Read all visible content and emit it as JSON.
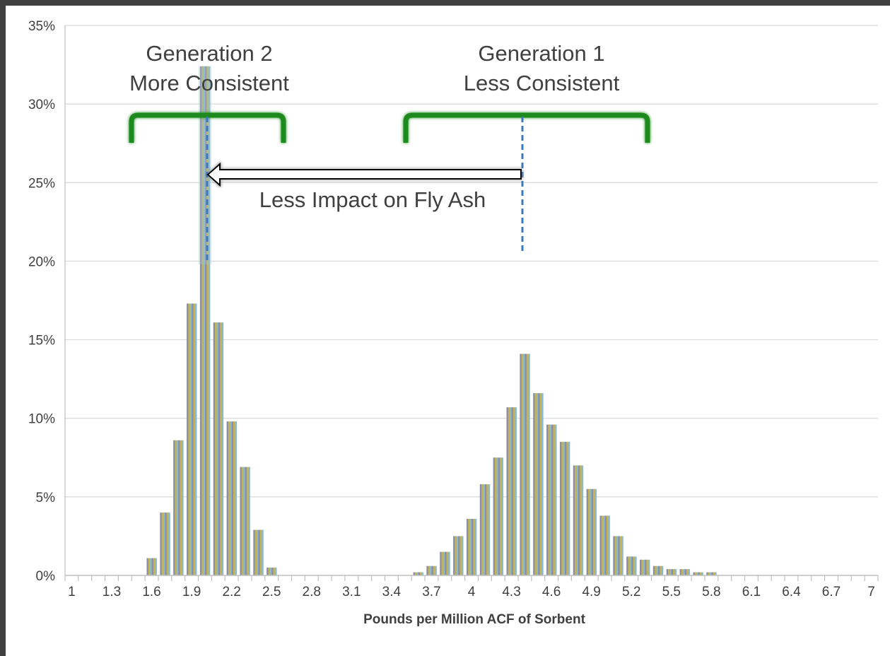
{
  "chart_data": {
    "type": "bar",
    "xlabel": "Pounds per Million ACF of Sorbent",
    "ylabel": "",
    "ylim": [
      0,
      0.35
    ],
    "y_ticks": [
      "0%",
      "5%",
      "10%",
      "15%",
      "20%",
      "25%",
      "30%",
      "35%"
    ],
    "grid": true,
    "x_tick_labels": [
      "1",
      "1.3",
      "1.6",
      "1.9",
      "2.2",
      "2.5",
      "2.8",
      "3.1",
      "3.4",
      "3.7",
      "4",
      "4.3",
      "4.6",
      "4.9",
      "5.2",
      "5.5",
      "5.8",
      "6.1",
      "6.4",
      "6.7",
      "7"
    ],
    "categories": [
      "1",
      "1.1",
      "1.2",
      "1.3",
      "1.4",
      "1.5",
      "1.6",
      "1.7",
      "1.8",
      "1.9",
      "2",
      "2.1",
      "2.2",
      "2.3",
      "2.4",
      "2.5",
      "2.6",
      "2.7",
      "2.8",
      "2.9",
      "3",
      "3.1",
      "3.2",
      "3.3",
      "3.4",
      "3.5",
      "3.6",
      "3.7",
      "3.8",
      "3.9",
      "4",
      "4.1",
      "4.2",
      "4.3",
      "4.4",
      "4.5",
      "4.6",
      "4.7",
      "4.8",
      "4.9",
      "5",
      "5.1",
      "5.2",
      "5.3",
      "5.4",
      "5.5",
      "5.6",
      "5.7",
      "5.8",
      "5.9",
      "6",
      "6.1",
      "6.2",
      "6.3",
      "6.4",
      "6.5",
      "6.6",
      "6.7",
      "6.8",
      "6.9",
      "7"
    ],
    "values": [
      0,
      0,
      0,
      0,
      0,
      0,
      0.011,
      0.04,
      0.086,
      0.173,
      0.324,
      0.161,
      0.098,
      0.069,
      0.029,
      0.005,
      0,
      0,
      0,
      0,
      0,
      0,
      0,
      0,
      0,
      0,
      0.002,
      0.006,
      0.015,
      0.025,
      0.036,
      0.058,
      0.075,
      0.107,
      0.141,
      0.116,
      0.096,
      0.085,
      0.07,
      0.055,
      0.038,
      0.025,
      0.012,
      0.01,
      0.006,
      0.004,
      0.004,
      0.002,
      0.002,
      0,
      0,
      0,
      0,
      0,
      0,
      0,
      0,
      0,
      0,
      0,
      0
    ],
    "bar_colors": [
      "#8a8fa8",
      "#c8b44a",
      "#8fb8c8"
    ],
    "annotations": {
      "gen2_line1": "Generation 2",
      "gen2_line2": "More Consistent",
      "gen1_line1": "Generation 1",
      "gen1_line2": "Less Consistent",
      "arrow_label": "Less Impact on Fly Ash"
    },
    "colors": {
      "bracket": "#1a8a1a",
      "dashed_line": "#3a78c0",
      "grid": "#d9d9d9",
      "axis": "#bfbfbf",
      "text": "#404040"
    }
  }
}
